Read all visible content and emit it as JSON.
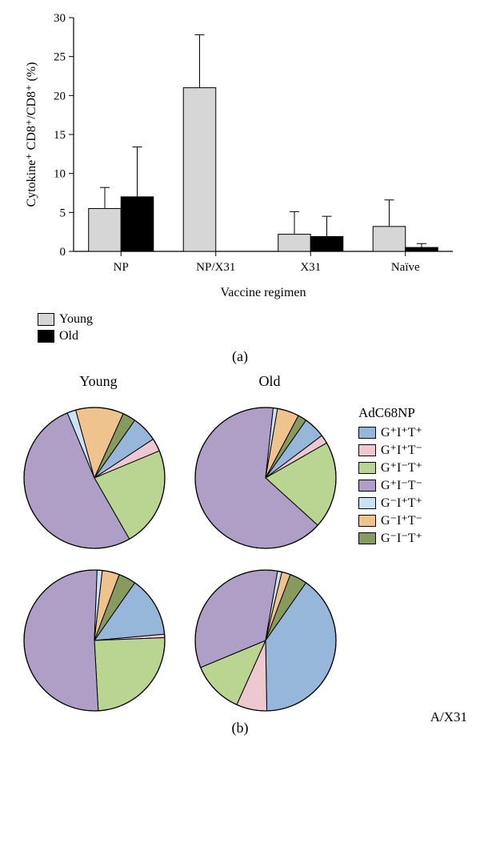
{
  "panelA": {
    "type": "bar",
    "ylabel": "Cytokine⁺ CD8⁺/CD8⁺ (%)",
    "xlabel": "Vaccine regimen",
    "categories": [
      "NP",
      "NP/X31",
      "X31",
      "Naïve"
    ],
    "series": [
      {
        "name": "Young",
        "color": "#d6d6d6",
        "values": [
          5.5,
          21.0,
          2.2,
          3.2
        ],
        "errors": [
          2.7,
          6.8,
          2.9,
          3.4
        ]
      },
      {
        "name": "Old",
        "color": "#000000",
        "values": [
          7.0,
          0.0,
          1.9,
          0.5
        ],
        "errors": [
          6.4,
          0.0,
          2.6,
          0.5
        ]
      }
    ],
    "ylim": [
      0,
      30
    ],
    "ytick_step": 5,
    "bar_width": 0.38,
    "group_gap": 0.9,
    "bg": "#ffffff",
    "bar_border": "#000000",
    "axis_color": "#000000",
    "label_fontsize": 16,
    "tick_fontsize": 15
  },
  "panelA_caption": "(a)",
  "panelB": {
    "type": "pies",
    "col_titles": [
      "Young",
      "Old"
    ],
    "legend_title": "AdC68NP",
    "row_labels": [
      "AdC68NP",
      "A/X31"
    ],
    "slice_labels": [
      "G⁺I⁺T⁺",
      "G⁺I⁺T⁻",
      "G⁺I⁻T⁺",
      "G⁺I⁻T⁻",
      "G⁻I⁺T⁺",
      "G⁻I⁺T⁻",
      "G⁻I⁻T⁺"
    ],
    "slice_colors": [
      "#97b7da",
      "#eec8d0",
      "#bad592",
      "#af9fc6",
      "#cbe2f4",
      "#efc38e",
      "#879a60"
    ],
    "border": "#000000",
    "bg": "#ffffff",
    "pies": [
      {
        "pos": "young_top",
        "fractions": [
          0.06,
          0.03,
          0.23,
          0.52,
          0.02,
          0.11,
          0.03
        ]
      },
      {
        "pos": "old_top",
        "fractions": [
          0.05,
          0.02,
          0.2,
          0.65,
          0.01,
          0.05,
          0.02
        ]
      },
      {
        "pos": "young_bot",
        "fractions": [
          0.14,
          0.008,
          0.25,
          0.52,
          0.012,
          0.04,
          0.04
        ]
      },
      {
        "pos": "old_bot",
        "fractions": [
          0.4,
          0.07,
          0.12,
          0.34,
          0.01,
          0.02,
          0.04
        ]
      }
    ],
    "pie_radius": 88,
    "start_angle_deg": -55
  },
  "panelB_caption": "(b)"
}
